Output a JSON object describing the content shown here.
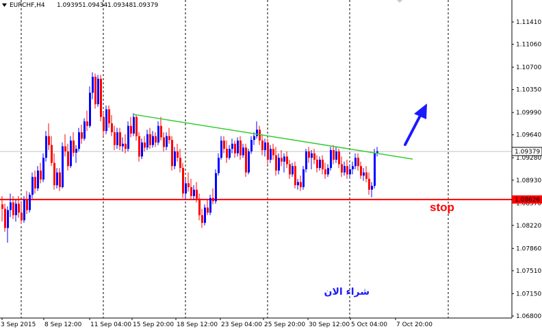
{
  "chart_data": {
    "type": "candlestick",
    "symbol_header": "EURCHF,H4",
    "ohlc_header": [
      "1.09395",
      "1.09434",
      "1.09348",
      "1.09379"
    ],
    "ylim": [
      1.068,
      1.1175
    ],
    "y_ticks": [
      "1.11410",
      "1.11060",
      "1.10700",
      "1.10350",
      "1.09990",
      "1.09640",
      "1.09280",
      "1.08930",
      "1.08570",
      "1.08220",
      "1.07860",
      "1.07510",
      "1.07150",
      "1.06800"
    ],
    "x_ticks": [
      "3 Sep 2015",
      "8 Sep 12:00",
      "11 Sep 04:00",
      "15 Sep 20:00",
      "18 Sep 12:00",
      "23 Sep 04:00",
      "25 Sep 20:00",
      "30 Sep 12:00",
      "5 Oct 04:00",
      "7 Oct 20:00"
    ],
    "current_price": {
      "value": 1.09379,
      "label": "1.09379"
    },
    "stop_level": {
      "value": 1.08626,
      "label": "1.08626"
    },
    "trendline": {
      "start": {
        "bar": 48,
        "price": 1.0996
      },
      "end": {
        "bar": 150,
        "price": 1.0926
      }
    },
    "grid": "vertical dashed",
    "colors": {
      "bull": "#0000ff",
      "bear": "#ff0000",
      "trendline": "#33cc33",
      "stop_line": "#ff0000",
      "arrow": "#1a1aff",
      "price_box_bg": "#ffffff",
      "stop_box_bg": "#ff0000"
    },
    "candles": [
      [
        1.0855,
        1.0868,
        1.0828,
        1.0848
      ],
      [
        1.0848,
        1.0856,
        1.0812,
        1.0818
      ],
      [
        1.0818,
        1.0852,
        1.0795,
        1.0846
      ],
      [
        1.0846,
        1.0872,
        1.0835,
        1.0858
      ],
      [
        1.0858,
        1.0868,
        1.0832,
        1.0838
      ],
      [
        1.0838,
        1.0862,
        1.0828,
        1.0856
      ],
      [
        1.0856,
        1.0868,
        1.0834,
        1.0842
      ],
      [
        1.0842,
        1.0858,
        1.0824,
        1.083
      ],
      [
        1.083,
        1.0868,
        1.0826,
        1.0862
      ],
      [
        1.0862,
        1.0876,
        1.084,
        1.0846
      ],
      [
        1.0846,
        1.0874,
        1.0842,
        1.087
      ],
      [
        1.087,
        1.0905,
        1.0864,
        1.0898
      ],
      [
        1.0898,
        1.0908,
        1.0872,
        1.088
      ],
      [
        1.088,
        1.0915,
        1.0876,
        1.0908
      ],
      [
        1.0908,
        1.092,
        1.0888,
        1.0894
      ],
      [
        1.0894,
        1.0935,
        1.089,
        1.0928
      ],
      [
        1.0928,
        1.097,
        1.0922,
        1.0962
      ],
      [
        1.0962,
        1.0982,
        1.094,
        1.0948
      ],
      [
        1.0948,
        1.0962,
        1.0915,
        1.092
      ],
      [
        1.092,
        1.0935,
        1.0878,
        1.0885
      ],
      [
        1.0885,
        1.0912,
        1.088,
        1.0905
      ],
      [
        1.0905,
        1.0912,
        1.0876,
        1.0882
      ],
      [
        1.0882,
        1.0952,
        1.088,
        1.0946
      ],
      [
        1.0946,
        1.0965,
        1.093,
        1.0938
      ],
      [
        1.0938,
        1.095,
        1.0908,
        1.0915
      ],
      [
        1.0915,
        1.0962,
        1.0912,
        1.0955
      ],
      [
        1.0955,
        1.0968,
        1.093,
        1.0936
      ],
      [
        1.0936,
        1.0948,
        1.092,
        1.0942
      ],
      [
        1.0942,
        1.0975,
        1.0938,
        1.0968
      ],
      [
        1.0968,
        1.098,
        1.095,
        1.0958
      ],
      [
        1.0958,
        1.099,
        1.0955,
        1.0985
      ],
      [
        1.0985,
        1.1002,
        1.097,
        1.0978
      ],
      [
        1.0978,
        1.104,
        1.0975,
        1.103
      ],
      [
        1.103,
        1.1062,
        1.102,
        1.1055
      ],
      [
        1.1055,
        1.106,
        1.1005,
        1.1012
      ],
      [
        1.1012,
        1.1058,
        1.1008,
        1.1052
      ],
      [
        1.1052,
        1.1058,
        1.0985,
        1.0992
      ],
      [
        1.0992,
        1.1,
        1.0962,
        1.097
      ],
      [
        1.097,
        1.101,
        1.0965,
        1.1004
      ],
      [
        1.1004,
        1.101,
        1.0975,
        1.0982
      ],
      [
        1.0982,
        1.0995,
        1.0962,
        1.0968
      ],
      [
        1.0968,
        1.0978,
        1.094,
        1.0948
      ],
      [
        1.0948,
        1.0975,
        1.0942,
        1.0968
      ],
      [
        1.0968,
        1.0975,
        1.094,
        1.0946
      ],
      [
        1.0946,
        1.096,
        1.0938,
        1.095
      ],
      [
        1.095,
        1.0965,
        1.0935,
        1.0942
      ],
      [
        1.0942,
        1.0985,
        1.0938,
        1.0978
      ],
      [
        1.0978,
        1.0992,
        1.096,
        1.0966
      ],
      [
        1.0966,
        1.0998,
        1.0962,
        1.0992
      ],
      [
        1.0992,
        1.0995,
        1.0955,
        1.0962
      ],
      [
        1.0962,
        1.0968,
        1.0922,
        1.093
      ],
      [
        1.093,
        1.0958,
        1.0926,
        1.0952
      ],
      [
        1.0952,
        1.0962,
        1.0938,
        1.0944
      ],
      [
        1.0944,
        1.0972,
        1.094,
        1.0965
      ],
      [
        1.0965,
        1.0975,
        1.0942,
        1.0948
      ],
      [
        1.0948,
        1.097,
        1.0944,
        1.0962
      ],
      [
        1.0962,
        1.0968,
        1.0945,
        1.0952
      ],
      [
        1.0952,
        1.0985,
        1.0948,
        1.0978
      ],
      [
        1.0978,
        1.0992,
        1.0955,
        1.096
      ],
      [
        1.096,
        1.0968,
        1.0938,
        1.0945
      ],
      [
        1.0945,
        1.0968,
        1.094,
        1.0962
      ],
      [
        1.0962,
        1.0975,
        1.095,
        1.0956
      ],
      [
        1.0956,
        1.0962,
        1.0908,
        1.0915
      ],
      [
        1.0915,
        1.0945,
        1.091,
        1.0938
      ],
      [
        1.0938,
        1.095,
        1.0922,
        1.0928
      ],
      [
        1.0928,
        1.0942,
        1.0905,
        1.0912
      ],
      [
        1.0912,
        1.092,
        1.0865,
        1.0872
      ],
      [
        1.0872,
        1.0895,
        1.0862,
        1.0888
      ],
      [
        1.0888,
        1.0905,
        1.0875,
        1.0882
      ],
      [
        1.0882,
        1.0895,
        1.0862,
        1.0868
      ],
      [
        1.0868,
        1.0885,
        1.0862,
        1.0878
      ],
      [
        1.0878,
        1.089,
        1.0858,
        1.0864
      ],
      [
        1.0864,
        1.0872,
        1.083,
        1.0838
      ],
      [
        1.0838,
        1.0848,
        1.0818,
        1.0826
      ],
      [
        1.0826,
        1.0855,
        1.0822,
        1.085
      ],
      [
        1.085,
        1.0862,
        1.0838,
        1.0842
      ],
      [
        1.0842,
        1.087,
        1.0838,
        1.0865
      ],
      [
        1.0865,
        1.088,
        1.0855,
        1.086
      ],
      [
        1.086,
        1.091,
        1.0856,
        1.0904
      ],
      [
        1.0904,
        1.0935,
        1.09,
        1.0928
      ],
      [
        1.0928,
        1.0962,
        1.0925,
        1.0955
      ],
      [
        1.0955,
        1.0962,
        1.0935,
        1.0942
      ],
      [
        1.0942,
        1.0955,
        1.092,
        1.0928
      ],
      [
        1.0928,
        1.0948,
        1.0925,
        1.0942
      ],
      [
        1.0942,
        1.0958,
        1.0935,
        1.095
      ],
      [
        1.095,
        1.0955,
        1.0928,
        1.0935
      ],
      [
        1.0935,
        1.096,
        1.093,
        1.0955
      ],
      [
        1.0955,
        1.0962,
        1.0925,
        1.0932
      ],
      [
        1.0932,
        1.095,
        1.0928,
        1.0944
      ],
      [
        1.0944,
        1.095,
        1.0898,
        1.0905
      ],
      [
        1.0905,
        1.0942,
        1.0902,
        1.0938
      ],
      [
        1.0938,
        1.0962,
        1.0934,
        1.0956
      ],
      [
        1.0956,
        1.0968,
        1.0948,
        1.0962
      ],
      [
        1.0962,
        1.0985,
        1.0958,
        1.0972
      ],
      [
        1.0972,
        1.0978,
        1.0948,
        1.0955
      ],
      [
        1.0955,
        1.0965,
        1.0932,
        1.094
      ],
      [
        1.094,
        1.0958,
        1.093,
        1.0952
      ],
      [
        1.0952,
        1.0958,
        1.0918,
        1.0925
      ],
      [
        1.0925,
        1.0948,
        1.092,
        1.0942
      ],
      [
        1.0942,
        1.095,
        1.0925,
        1.0932
      ],
      [
        1.0932,
        1.0945,
        1.09,
        1.0908
      ],
      [
        1.0908,
        1.0935,
        1.0902,
        1.0928
      ],
      [
        1.0928,
        1.094,
        1.0915,
        1.0922
      ],
      [
        1.0922,
        1.0935,
        1.0905,
        1.093
      ],
      [
        1.093,
        1.0938,
        1.0912,
        1.0918
      ],
      [
        1.0918,
        1.0925,
        1.0895,
        1.0902
      ],
      [
        1.0902,
        1.092,
        1.0898,
        1.0915
      ],
      [
        1.0915,
        1.0922,
        1.088,
        1.0885
      ],
      [
        1.0885,
        1.0895,
        1.0878,
        1.089
      ],
      [
        1.089,
        1.09,
        1.0876,
        1.0882
      ],
      [
        1.0882,
        1.0915,
        1.0878,
        1.091
      ],
      [
        1.091,
        1.0942,
        1.0905,
        1.0938
      ],
      [
        1.0938,
        1.0945,
        1.092,
        1.0928
      ],
      [
        1.0928,
        1.094,
        1.091,
        1.0935
      ],
      [
        1.0935,
        1.0942,
        1.0918,
        1.0925
      ],
      [
        1.0925,
        1.0932,
        1.0905,
        1.0912
      ],
      [
        1.0912,
        1.093,
        1.0908,
        1.0925
      ],
      [
        1.0925,
        1.0932,
        1.0902,
        1.091
      ],
      [
        1.091,
        1.092,
        1.0895,
        1.0902
      ],
      [
        1.0902,
        1.0918,
        1.0898,
        1.0912
      ],
      [
        1.0912,
        1.0945,
        1.0908,
        1.094
      ],
      [
        1.094,
        1.0948,
        1.0918,
        1.0925
      ],
      [
        1.0925,
        1.0945,
        1.092,
        1.0938
      ],
      [
        1.0938,
        1.0942,
        1.0912,
        1.0918
      ],
      [
        1.0918,
        1.093,
        1.0898,
        1.0905
      ],
      [
        1.0905,
        1.0922,
        1.09,
        1.0915
      ],
      [
        1.0915,
        1.0925,
        1.0895,
        1.0902
      ],
      [
        1.0902,
        1.0918,
        1.0895,
        1.091
      ],
      [
        1.091,
        1.0922,
        1.0902,
        1.0915
      ],
      [
        1.0915,
        1.0935,
        1.091,
        1.0928
      ],
      [
        1.0928,
        1.0935,
        1.0908,
        1.0915
      ],
      [
        1.0915,
        1.0922,
        1.0895,
        1.09
      ],
      [
        1.09,
        1.0912,
        1.0892,
        1.0905
      ],
      [
        1.0905,
        1.0915,
        1.089,
        1.0895
      ],
      [
        1.0895,
        1.0905,
        1.087,
        1.0878
      ],
      [
        1.0878,
        1.089,
        1.0866,
        1.0884
      ],
      [
        1.0884,
        1.0942,
        1.088,
        1.0936
      ],
      [
        1.0936,
        1.0945,
        1.093,
        1.0938
      ]
    ]
  },
  "annotations": {
    "stop_text": "stop",
    "buy_text": "شراء الان"
  }
}
